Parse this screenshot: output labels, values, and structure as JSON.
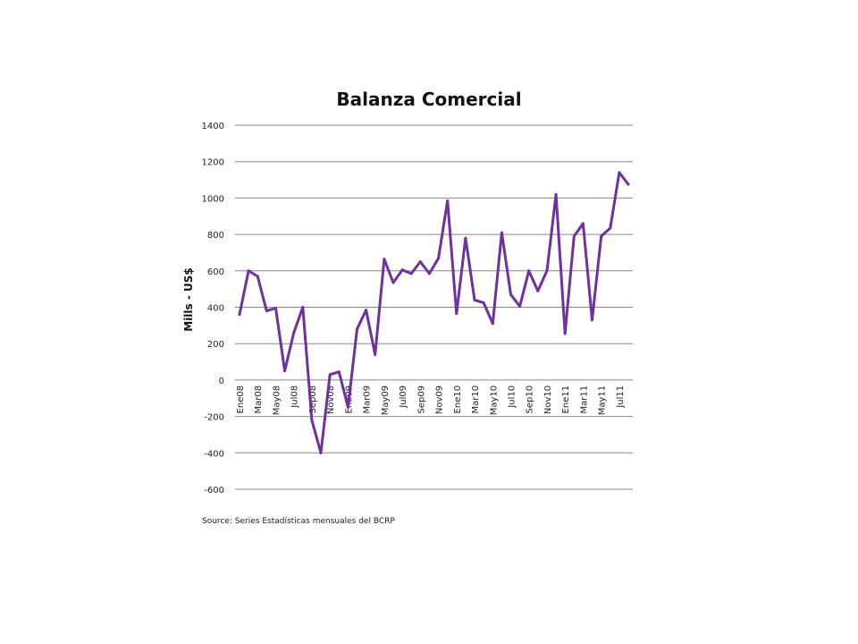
{
  "source_note": "Source: Series Estadísticas mensuales del BCRP",
  "chart_data": {
    "type": "line",
    "title": "Balanza Comercial",
    "xlabel": "",
    "ylabel": "Mills - US$",
    "ylim": [
      -600,
      1400
    ],
    "yticks": [
      1400,
      1200,
      1000,
      800,
      600,
      400,
      200,
      0,
      -200,
      -400,
      -600
    ],
    "grid": true,
    "legend": "none",
    "line_color": "#7030A0",
    "categories": [
      "Ene08",
      "Feb08",
      "Mar08",
      "Abr08",
      "May08",
      "Jun08",
      "Jul08",
      "Ago08",
      "Sep08",
      "Oct08",
      "Nov08",
      "Dic08",
      "Ene09",
      "Feb09",
      "Mar09",
      "Abr09",
      "May09",
      "Jun09",
      "Jul09",
      "Ago09",
      "Sep09",
      "Oct09",
      "Nov09",
      "Dic09",
      "Ene10",
      "Feb10",
      "Mar10",
      "Abr10",
      "May10",
      "Jun10",
      "Jul10",
      "Ago10",
      "Sep10",
      "Oct10",
      "Nov10",
      "Dic10",
      "Ene11",
      "Feb11",
      "Mar11",
      "Abr11",
      "May11",
      "Jun11",
      "Jul11",
      "Ago11"
    ],
    "tick_labels": [
      {
        "index": 0,
        "label": "Ene08"
      },
      {
        "index": 2,
        "label": "Mar08"
      },
      {
        "index": 4,
        "label": "May08"
      },
      {
        "index": 6,
        "label": "Jul08"
      },
      {
        "index": 8,
        "label": "Sep08"
      },
      {
        "index": 10,
        "label": "Nov08"
      },
      {
        "index": 12,
        "label": "Ene09"
      },
      {
        "index": 14,
        "label": "Mar09"
      },
      {
        "index": 16,
        "label": "May09"
      },
      {
        "index": 18,
        "label": "Jul09"
      },
      {
        "index": 20,
        "label": "Sep09"
      },
      {
        "index": 22,
        "label": "Nov09"
      },
      {
        "index": 24,
        "label": "Ene10"
      },
      {
        "index": 26,
        "label": "Mar10"
      },
      {
        "index": 28,
        "label": "May10"
      },
      {
        "index": 30,
        "label": "Jul10"
      },
      {
        "index": 32,
        "label": "Sep10"
      },
      {
        "index": 34,
        "label": "Nov10"
      },
      {
        "index": 36,
        "label": "Ene11"
      },
      {
        "index": 38,
        "label": "Mar11"
      },
      {
        "index": 40,
        "label": "May11"
      },
      {
        "index": 42,
        "label": "Jul11"
      }
    ],
    "values": [
      360,
      600,
      570,
      380,
      395,
      50,
      260,
      400,
      -220,
      -400,
      30,
      45,
      -150,
      280,
      385,
      140,
      665,
      535,
      605,
      585,
      650,
      585,
      670,
      985,
      365,
      780,
      440,
      425,
      310,
      810,
      470,
      405,
      600,
      490,
      600,
      1020,
      255,
      790,
      860,
      330,
      790,
      835,
      1140,
      1075
    ]
  }
}
